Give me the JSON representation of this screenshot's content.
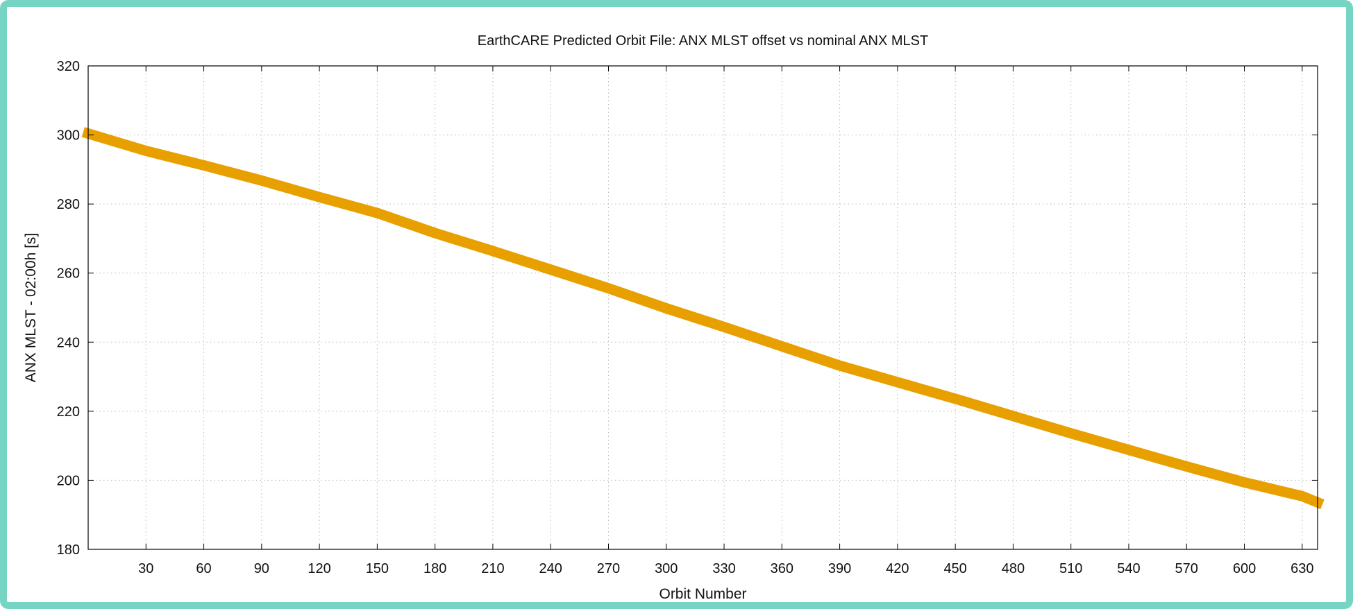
{
  "chart_data": {
    "type": "line",
    "title": "EarthCARE Predicted Orbit File: ANX MLST offset vs nominal ANX MLST",
    "xlabel": "Orbit Number",
    "ylabel": "ANX MLST - 02:00h [s]",
    "xlim": [
      0,
      638
    ],
    "ylim": [
      180,
      320
    ],
    "xticks": [
      30,
      60,
      90,
      120,
      150,
      180,
      210,
      240,
      270,
      300,
      330,
      360,
      390,
      420,
      450,
      480,
      510,
      540,
      570,
      600,
      630
    ],
    "yticks": [
      180,
      200,
      220,
      240,
      260,
      280,
      300,
      320
    ],
    "grid": true,
    "legend": "none",
    "series": [
      {
        "color": "#e8a000",
        "x": [
          0,
          30,
          60,
          90,
          120,
          150,
          180,
          210,
          240,
          270,
          300,
          330,
          360,
          390,
          420,
          450,
          480,
          510,
          540,
          570,
          600,
          630,
          638
        ],
        "values": [
          300.4,
          295.4,
          291.2,
          286.8,
          282.0,
          277.4,
          271.6,
          266.4,
          261.0,
          255.6,
          249.8,
          244.4,
          238.8,
          233.2,
          228.4,
          223.6,
          218.6,
          213.6,
          208.8,
          204.0,
          199.4,
          195.4,
          193.6
        ]
      }
    ]
  }
}
